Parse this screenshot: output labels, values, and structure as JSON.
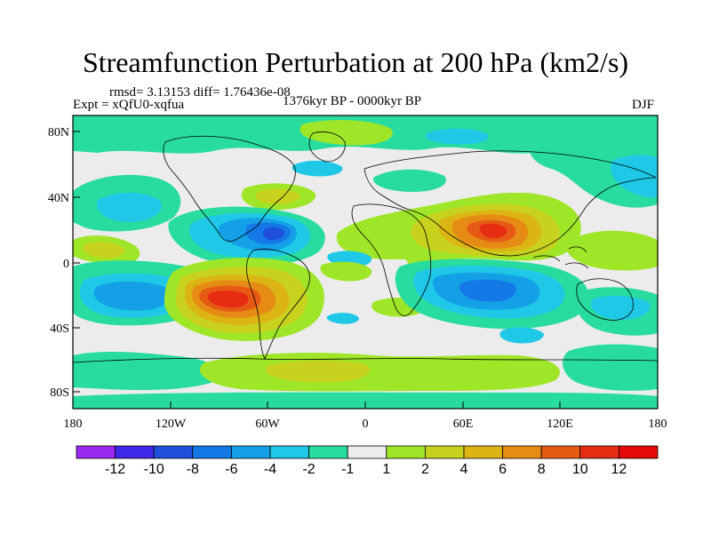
{
  "title": "Streamfunction Perturbation at 200 hPa (km2/s)",
  "stats": "rmsd= 3.13153 diff= 1.76436e-08",
  "experiment": "Expt = xQfU0-xqfua",
  "period": "1376kyr BP - 0000kyr BP",
  "season": "DJF",
  "lat_ticks": [
    "80N",
    "40N",
    "0",
    "40S",
    "80S"
  ],
  "lon_ticks": [
    "180",
    "120W",
    "60W",
    "0",
    "60E",
    "120E",
    "180"
  ],
  "colorbar": {
    "labels": [
      "-12",
      "-10",
      "-8",
      "-6",
      "-4",
      "-2",
      "-1",
      "1",
      "2",
      "4",
      "6",
      "8",
      "10",
      "12"
    ],
    "colors": [
      "#9b28f0",
      "#3c28e6",
      "#1e50dc",
      "#1478e6",
      "#14a0e6",
      "#1ec8e6",
      "#28dca0",
      "#ececec",
      "#a0e628",
      "#c8d21e",
      "#dcb414",
      "#e68c14",
      "#e65a14",
      "#e62d14",
      "#e60a0a"
    ]
  }
}
